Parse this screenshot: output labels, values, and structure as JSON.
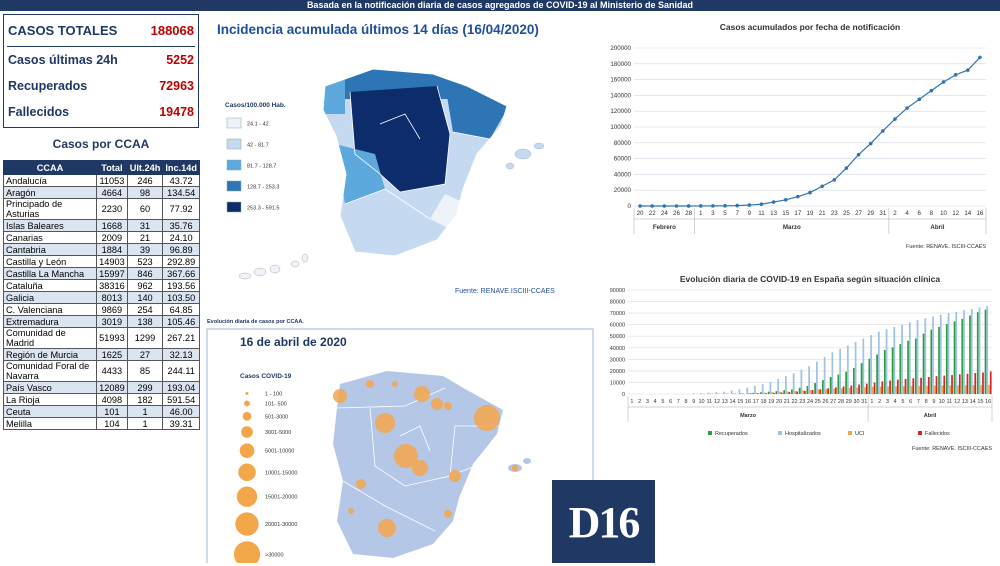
{
  "header": {
    "title": "Basada en la notificación diaria de casos agregados de COVID-19 al Ministerio de Sanidad"
  },
  "summary": [
    {
      "label": "CASOS TOTALES",
      "value": 188068
    },
    {
      "label": "Casos últimas 24h",
      "value": 5252
    },
    {
      "label": "Recuperados",
      "value": 72963
    },
    {
      "label": "Fallecidos",
      "value": 19478
    }
  ],
  "table": {
    "title": "Casos por CCAA",
    "columns": [
      "CCAA",
      "Total",
      "Ult.24h",
      "Inc.14d"
    ],
    "rows": [
      [
        "Andalucía",
        "11053",
        "246",
        "43.72"
      ],
      [
        "Aragón",
        "4664",
        "98",
        "134.54"
      ],
      [
        "Principado de Asturias",
        "2230",
        "60",
        "77.92"
      ],
      [
        "Islas Baleares",
        "1668",
        "31",
        "35.76"
      ],
      [
        "Canarias",
        "2009",
        "21",
        "24.10"
      ],
      [
        "Cantabria",
        "1884",
        "39",
        "96.89"
      ],
      [
        "Castilla y León",
        "14903",
        "523",
        "292.89"
      ],
      [
        "Castilla La Mancha",
        "15997",
        "846",
        "367.66"
      ],
      [
        "Cataluña",
        "38316",
        "962",
        "193.56"
      ],
      [
        "Galicia",
        "8013",
        "140",
        "103.50"
      ],
      [
        "C. Valenciana",
        "9869",
        "254",
        "64.85"
      ],
      [
        "Extremadura",
        "3019",
        "138",
        "105.46"
      ],
      [
        "Comunidad de Madrid",
        "51993",
        "1299",
        "267.21"
      ],
      [
        "Región de Murcia",
        "1625",
        "27",
        "32.13"
      ],
      [
        "Comunidad Foral de Navarra",
        "4433",
        "85",
        "244.11"
      ],
      [
        "País Vasco",
        "12089",
        "299",
        "193.04"
      ],
      [
        "La Rioja",
        "4098",
        "182",
        "591.54"
      ],
      [
        "Ceuta",
        "101",
        "1",
        "46.00"
      ],
      [
        "Melilla",
        "104",
        "1",
        "39.31"
      ]
    ]
  },
  "map_incidence": {
    "title": "Incidencia acumulada últimos 14 días (16/04/2020)",
    "legend_title": "Casos/100.000 Hab.",
    "legend": [
      {
        "label": "24.1 - 42",
        "color": "#eef3fa"
      },
      {
        "label": "42 - 81.7",
        "color": "#c5d9f1"
      },
      {
        "label": "81.7 - 128.7",
        "color": "#5da9dd"
      },
      {
        "label": "128.7 - 253.3",
        "color": "#2e75b6"
      },
      {
        "label": "253.3 - 591.5",
        "color": "#0d2c6b"
      }
    ],
    "source": "Fuente: RENAVE.ISCIII-CCAES"
  },
  "map_cases": {
    "caption": "Evolución diaria de casos por CCAA.",
    "title": "16 de abril de 2020",
    "legend_title": "Casos COVID-19",
    "legend": [
      "1 - 100",
      "101- 500",
      "501-3000",
      "3001-5000",
      "5001-10000",
      "10001-15000",
      "15001-20000",
      "20001-30000",
      ">30000"
    ]
  },
  "logo": "D16",
  "chart_data": [
    {
      "type": "line",
      "title": "Casos acumulados por fecha de notificación",
      "categories": [
        "20",
        "22",
        "24",
        "26",
        "28",
        "1",
        "3",
        "5",
        "7",
        "9",
        "11",
        "13",
        "15",
        "17",
        "19",
        "21",
        "23",
        "25",
        "27",
        "29",
        "31",
        "2",
        "4",
        "6",
        "8",
        "10",
        "12",
        "14",
        "16"
      ],
      "months": [
        "Febrero",
        "Marzo",
        "Abril"
      ],
      "values": [
        0,
        0,
        0,
        2,
        20,
        80,
        160,
        260,
        500,
        1200,
        2300,
        5000,
        7800,
        11800,
        17000,
        25000,
        33000,
        48000,
        65000,
        79000,
        95000,
        110000,
        124000,
        135000,
        146000,
        157000,
        166000,
        172000,
        188068
      ],
      "color": "#2e75b6",
      "ylim": [
        0,
        200000
      ],
      "yticks": [
        0,
        20000,
        40000,
        60000,
        80000,
        100000,
        120000,
        140000,
        160000,
        180000,
        200000
      ],
      "grid": true,
      "source": "Fuente: RENAVE. ISCIII-CCAES"
    },
    {
      "type": "bar",
      "title": "Evolución diaria de COVID-19 en España según situación clínica",
      "categories": [
        "1",
        "2",
        "3",
        "4",
        "5",
        "6",
        "7",
        "8",
        "9",
        "10",
        "11",
        "12",
        "13",
        "14",
        "15",
        "16",
        "17",
        "18",
        "19",
        "20",
        "21",
        "22",
        "23",
        "24",
        "25",
        "26",
        "27",
        "28",
        "29",
        "30",
        "31",
        "1",
        "2",
        "3",
        "4",
        "5",
        "6",
        "7",
        "8",
        "9",
        "10",
        "11",
        "12",
        "13",
        "14",
        "15",
        "16"
      ],
      "months": [
        "Marzo",
        "Abril"
      ],
      "series": [
        {
          "name": "Recuperados",
          "color": "#2e9e3e",
          "values": [
            0,
            0,
            0,
            0,
            0,
            0,
            0,
            0,
            0,
            0,
            0,
            0,
            0,
            0,
            0,
            0,
            1000,
            1500,
            2000,
            2500,
            3300,
            4000,
            5400,
            7000,
            9500,
            12000,
            14700,
            16800,
            19300,
            22600,
            26700,
            30500,
            34200,
            38100,
            40400,
            43200,
            46000,
            48000,
            52200,
            55700,
            58000,
            60500,
            62800,
            65000,
            68000,
            70800,
            72963
          ]
        },
        {
          "name": "Hospitalizados",
          "color": "#9fc3e6",
          "values": [
            0,
            0,
            0,
            0,
            0,
            0,
            0,
            0,
            500,
            800,
            1200,
            1600,
            2000,
            3000,
            4000,
            5500,
            7000,
            8500,
            10500,
            13000,
            15500,
            18000,
            21000,
            24000,
            28000,
            32000,
            36000,
            39000,
            42000,
            45000,
            48000,
            51000,
            54000,
            56000,
            58000,
            60000,
            62000,
            64000,
            65500,
            67000,
            68500,
            70000,
            71000,
            72500,
            73500,
            75000,
            76000
          ]
        },
        {
          "name": "UCI",
          "color": "#f4a64a",
          "values": [
            0,
            0,
            0,
            0,
            0,
            0,
            0,
            0,
            100,
            150,
            200,
            300,
            400,
            500,
            700,
            900,
            1100,
            1300,
            1600,
            2000,
            2300,
            2600,
            3000,
            3300,
            3800,
            4200,
            4600,
            5000,
            5200,
            5600,
            5900,
            6200,
            6400,
            6500,
            6700,
            6900,
            7000,
            7100,
            7200,
            7300,
            7400,
            7450,
            7500,
            7600,
            7700,
            7800,
            7900
          ]
        },
        {
          "name": "Fallecidos",
          "color": "#d7262a",
          "values": [
            0,
            0,
            0,
            0,
            0,
            0,
            0,
            10,
            30,
            50,
            80,
            120,
            200,
            290,
            340,
            530,
            600,
            770,
            1000,
            1300,
            1700,
            2200,
            2700,
            3400,
            4100,
            4900,
            5700,
            6500,
            7300,
            8200,
            9000,
            9900,
            10900,
            11700,
            12400,
            13000,
            13600,
            14000,
            14700,
            15400,
            15900,
            16400,
            17000,
            17500,
            18100,
            18600,
            19478
          ]
        }
      ],
      "ylim": [
        0,
        90000
      ],
      "yticks": [
        0,
        10000,
        20000,
        30000,
        40000,
        50000,
        60000,
        70000,
        80000,
        90000
      ],
      "grid": true,
      "legend": "bottom",
      "source": "Fuente: RENAVE. ISCIII-CCAES"
    }
  ]
}
